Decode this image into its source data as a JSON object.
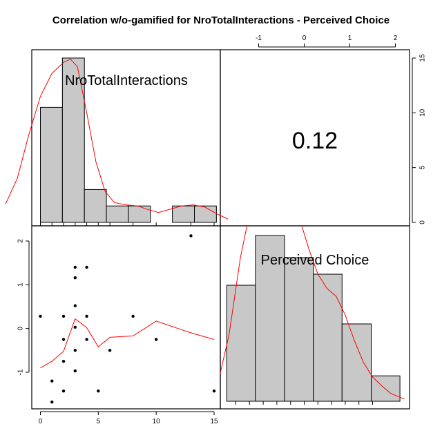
{
  "chart_data": {
    "type": "scatter",
    "title": "Correlation w/o-gamified for NroTotalInteractions - Perceived Choice",
    "variables": [
      "NroTotalInteractions",
      "Perceived Choice"
    ],
    "correlation_text": "0.12",
    "x_ticks": [
      "0",
      "5",
      "10",
      "15"
    ],
    "y_ticks": [
      "-1",
      "0",
      "1",
      "2"
    ],
    "top_ticks": [
      "-1",
      "0",
      "1",
      "2"
    ],
    "right_ticks": [
      "0",
      "5",
      "10",
      "15"
    ],
    "hist_NroTotalInteractions": {
      "bins": [
        [
          0,
          1.9
        ],
        [
          1.9,
          3.8
        ],
        [
          3.8,
          5.7
        ],
        [
          5.7,
          7.6
        ],
        [
          7.6,
          9.5
        ],
        [
          9.5,
          11.4
        ],
        [
          11.4,
          13.3
        ],
        [
          13.3,
          15.2
        ]
      ],
      "heights": [
        10.5,
        15,
        3,
        1.5,
        1.5,
        0,
        1.5,
        1.5
      ]
    },
    "hist_PerceivedChoice": {
      "bins": [
        [
          -1.7,
          -1.07
        ],
        [
          -1.07,
          -0.43
        ],
        [
          -0.43,
          0.2
        ],
        [
          0.2,
          0.83
        ],
        [
          0.83,
          1.47
        ],
        [
          1.47,
          2.1
        ]
      ],
      "heights": [
        10.5,
        15,
        13,
        11.5,
        7,
        2.3
      ]
    },
    "rug_NroTotalInteractions": [
      0,
      1,
      2,
      3,
      4,
      5,
      6,
      8,
      10,
      13,
      15
    ],
    "rug_PerceivedChoice": [
      -1.5,
      -1.2,
      -0.9,
      -0.6,
      -0.3,
      0,
      0.3,
      0.6,
      0.9,
      1.2,
      1.5
    ],
    "points": [
      {
        "x": 0,
        "y": 0.28
      },
      {
        "x": 1,
        "y": -1.2
      },
      {
        "x": 1,
        "y": -1.68
      },
      {
        "x": 2,
        "y": 0.28
      },
      {
        "x": 2,
        "y": -0.25
      },
      {
        "x": 2,
        "y": -0.75
      },
      {
        "x": 2,
        "y": -1.43
      },
      {
        "x": 3,
        "y": 1.4
      },
      {
        "x": 3,
        "y": 1.16
      },
      {
        "x": 3,
        "y": 0.52
      },
      {
        "x": 3,
        "y": 0.03
      },
      {
        "x": 3,
        "y": -0.5
      },
      {
        "x": 3,
        "y": -0.97
      },
      {
        "x": 4,
        "y": 1.4
      },
      {
        "x": 4,
        "y": 0.28
      },
      {
        "x": 4,
        "y": -0.25
      },
      {
        "x": 5,
        "y": -1.43
      },
      {
        "x": 6,
        "y": -0.5
      },
      {
        "x": 8,
        "y": 0.28
      },
      {
        "x": 10,
        "y": -0.25
      },
      {
        "x": 13,
        "y": 2.12
      },
      {
        "x": 15,
        "y": -1.43
      }
    ],
    "smooth_line": [
      {
        "x": 0,
        "y": -0.9
      },
      {
        "x": 1,
        "y": -0.75
      },
      {
        "x": 2,
        "y": -0.52
      },
      {
        "x": 3,
        "y": 0.22
      },
      {
        "x": 4,
        "y": 0.02
      },
      {
        "x": 5,
        "y": -0.42
      },
      {
        "x": 6,
        "y": -0.2
      },
      {
        "x": 8,
        "y": -0.17
      },
      {
        "x": 10,
        "y": 0.17
      },
      {
        "x": 13,
        "y": -0.1
      },
      {
        "x": 15,
        "y": -0.25
      }
    ],
    "density_NroTotalInteractions": [
      {
        "x": -3,
        "y": 1.7
      },
      {
        "x": -2,
        "y": 4
      },
      {
        "x": -1,
        "y": 8
      },
      {
        "x": 0,
        "y": 11.5
      },
      {
        "x": 1,
        "y": 13.6
      },
      {
        "x": 2,
        "y": 14.6
      },
      {
        "x": 2.6,
        "y": 14.9
      },
      {
        "x": 3.2,
        "y": 14.2
      },
      {
        "x": 4,
        "y": 10
      },
      {
        "x": 4.8,
        "y": 5.5
      },
      {
        "x": 5.6,
        "y": 2.8
      },
      {
        "x": 6.4,
        "y": 1.8
      },
      {
        "x": 7.4,
        "y": 1.6
      },
      {
        "x": 8.4,
        "y": 1.5
      },
      {
        "x": 9.2,
        "y": 1.2
      },
      {
        "x": 10.2,
        "y": 0.9
      },
      {
        "x": 11.2,
        "y": 1.2
      },
      {
        "x": 12.2,
        "y": 1.5
      },
      {
        "x": 13.2,
        "y": 1.6
      },
      {
        "x": 14.2,
        "y": 1.4
      },
      {
        "x": 15.2,
        "y": 0.8
      },
      {
        "x": 16.2,
        "y": 0.3
      }
    ],
    "density_PerceivedChoice": [
      {
        "x": -1.9,
        "y": 1.5
      },
      {
        "x": -1.65,
        "y": 6
      },
      {
        "x": -1.4,
        "y": 13
      },
      {
        "x": -1.15,
        "y": 18
      },
      {
        "x": -0.9,
        "y": 20
      },
      {
        "x": -0.7,
        "y": 21
      },
      {
        "x": -0.5,
        "y": 20.5
      },
      {
        "x": -0.3,
        "y": 19
      },
      {
        "x": -0.1,
        "y": 16.5
      },
      {
        "x": 0.1,
        "y": 13.8
      },
      {
        "x": 0.3,
        "y": 11.5
      },
      {
        "x": 0.5,
        "y": 10.2
      },
      {
        "x": 0.7,
        "y": 9.5
      },
      {
        "x": 0.9,
        "y": 7.8
      },
      {
        "x": 1.1,
        "y": 5.5
      },
      {
        "x": 1.3,
        "y": 3.5
      },
      {
        "x": 1.5,
        "y": 2.2
      },
      {
        "x": 1.7,
        "y": 1.4
      },
      {
        "x": 1.9,
        "y": 0.7
      },
      {
        "x": 2.2,
        "y": 0.2
      }
    ],
    "colors": {
      "bar_fill": "#c8c8c8",
      "line": "#ff0000",
      "point": "#000000"
    }
  }
}
